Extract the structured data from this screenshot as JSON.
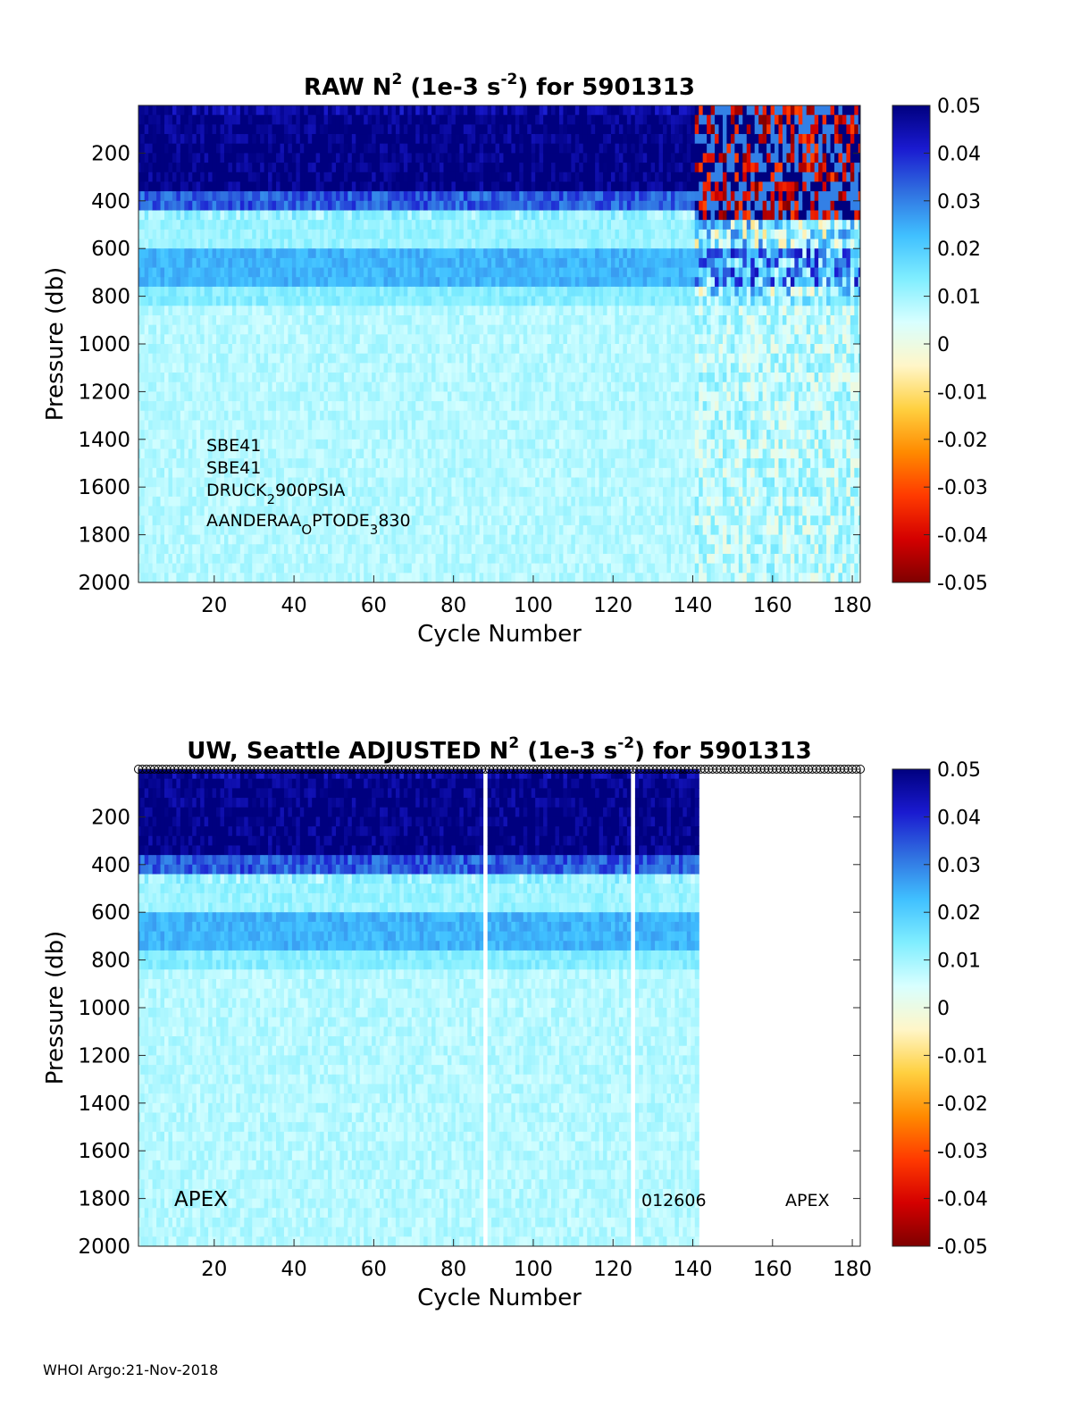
{
  "footer": "WHOI Argo:21-Nov-2018",
  "colorbar": {
    "stops": [
      "#7f0000",
      "#d40000",
      "#ff3a00",
      "#ff8a00",
      "#ffd040",
      "#fff6c8",
      "#d8ffff",
      "#80eeff",
      "#40c0ff",
      "#3070e0",
      "#1a1ad0",
      "#00007f"
    ],
    "ticks": [
      "0.05",
      "0.04",
      "0.03",
      "0.02",
      "0.01",
      "0",
      "-0.01",
      "-0.02",
      "-0.03",
      "-0.04",
      "-0.05"
    ]
  },
  "chart_data": [
    {
      "type": "heatmap",
      "title_parts": [
        "RAW N",
        "2",
        " (1e-3 s",
        "-2",
        ") for 5901313"
      ],
      "xlabel": "Cycle Number",
      "ylabel": "Pressure (db)",
      "xlim": [
        1,
        182
      ],
      "ylim": [
        0,
        2000
      ],
      "x_ticks": [
        "20",
        "40",
        "60",
        "80",
        "100",
        "120",
        "140",
        "160",
        "180"
      ],
      "y_ticks": [
        "200",
        "400",
        "600",
        "800",
        "1000",
        "1200",
        "1400",
        "1600",
        "1800",
        "2000"
      ],
      "clim": [
        -0.05,
        0.05
      ],
      "last_cycle": 182,
      "noisy_from_cycle": 141,
      "gap_cycles": [],
      "bands": [
        {
          "from": 0,
          "to": 60,
          "value": 0.046
        },
        {
          "from": 60,
          "to": 350,
          "value": 0.05
        },
        {
          "from": 350,
          "to": 450,
          "value": 0.034
        },
        {
          "from": 450,
          "to": 600,
          "value": 0.011
        },
        {
          "from": 600,
          "to": 750,
          "value": 0.024
        },
        {
          "from": 750,
          "to": 850,
          "value": 0.013
        },
        {
          "from": 850,
          "to": 2000,
          "value": 0.008
        }
      ],
      "annotations": {
        "sensor1": "SBE41",
        "sensor2": "SBE41",
        "sensor3": {
          "main": "DRUCK",
          "sub": "2",
          "rest": "900PSIA"
        },
        "sensor4": {
          "main": "AANDERAA",
          "sub": "O",
          "mid": "PTODE",
          "sub2": "3",
          "rest": "830"
        }
      }
    },
    {
      "type": "heatmap",
      "title_parts": [
        "UW, Seattle  ADJUSTED N",
        "2",
        " (1e-3 s",
        "-2",
        ") for 5901313"
      ],
      "xlabel": "Cycle Number",
      "ylabel": "Pressure (db)",
      "xlim": [
        1,
        182
      ],
      "ylim": [
        0,
        2000
      ],
      "x_ticks": [
        "20",
        "40",
        "60",
        "80",
        "100",
        "120",
        "140",
        "160",
        "180"
      ],
      "y_ticks": [
        "200",
        "400",
        "600",
        "800",
        "1000",
        "1200",
        "1400",
        "1600",
        "1800",
        "2000"
      ],
      "clim": [
        -0.05,
        0.05
      ],
      "last_cycle": 141,
      "noisy_from_cycle": 999,
      "gap_cycles": [
        88,
        125
      ],
      "bands": [
        {
          "from": 0,
          "to": 60,
          "value": 0.046
        },
        {
          "from": 60,
          "to": 350,
          "value": 0.05
        },
        {
          "from": 350,
          "to": 450,
          "value": 0.034
        },
        {
          "from": 450,
          "to": 600,
          "value": 0.011
        },
        {
          "from": 600,
          "to": 750,
          "value": 0.024
        },
        {
          "from": 750,
          "to": 850,
          "value": 0.013
        },
        {
          "from": 850,
          "to": 2000,
          "value": 0.008
        }
      ],
      "annotations": {
        "float_type_left": "APEX",
        "serial": "012606",
        "float_type_right": "APEX"
      }
    }
  ]
}
